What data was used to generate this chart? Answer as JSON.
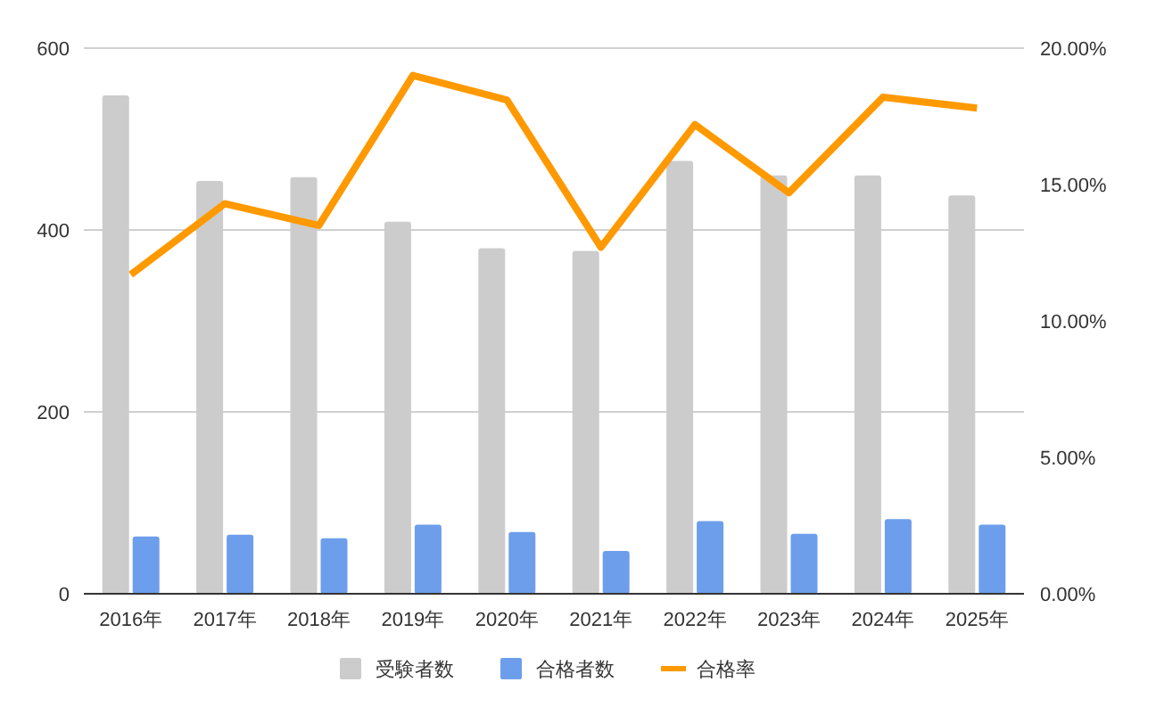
{
  "chart_data": {
    "type": "bar",
    "categories": [
      "2016年",
      "2017年",
      "2018年",
      "2019年",
      "2020年",
      "2021年",
      "2022年",
      "2023年",
      "2024年",
      "2025年"
    ],
    "series": [
      {
        "name": "受験者数",
        "color": "#cccccc",
        "values": [
          548,
          454,
          458,
          409,
          380,
          377,
          476,
          460,
          460,
          438
        ]
      },
      {
        "name": "合格者数",
        "color": "#6d9eeb",
        "values": [
          63,
          65,
          61,
          76,
          68,
          47,
          80,
          66,
          82,
          76
        ]
      },
      {
        "name": "合格率",
        "color": "#ff9900",
        "type": "line",
        "axis": "y2",
        "values": [
          11.7,
          14.3,
          13.5,
          19.0,
          18.1,
          12.7,
          17.2,
          14.7,
          18.2,
          17.8
        ]
      }
    ],
    "ylim": [
      0,
      600
    ],
    "yticks": [
      0,
      200,
      400,
      600
    ],
    "y2lim": [
      0,
      20
    ],
    "y2ticks": [
      {
        "value": 0,
        "label": "0.00%"
      },
      {
        "value": 5,
        "label": "5.00%"
      },
      {
        "value": 10,
        "label": "10.00%"
      },
      {
        "value": 15,
        "label": "15.00%"
      },
      {
        "value": 20,
        "label": "20.00%"
      }
    ],
    "grid": true,
    "legend": "bottom",
    "line_style": "solid",
    "marker": "none"
  }
}
